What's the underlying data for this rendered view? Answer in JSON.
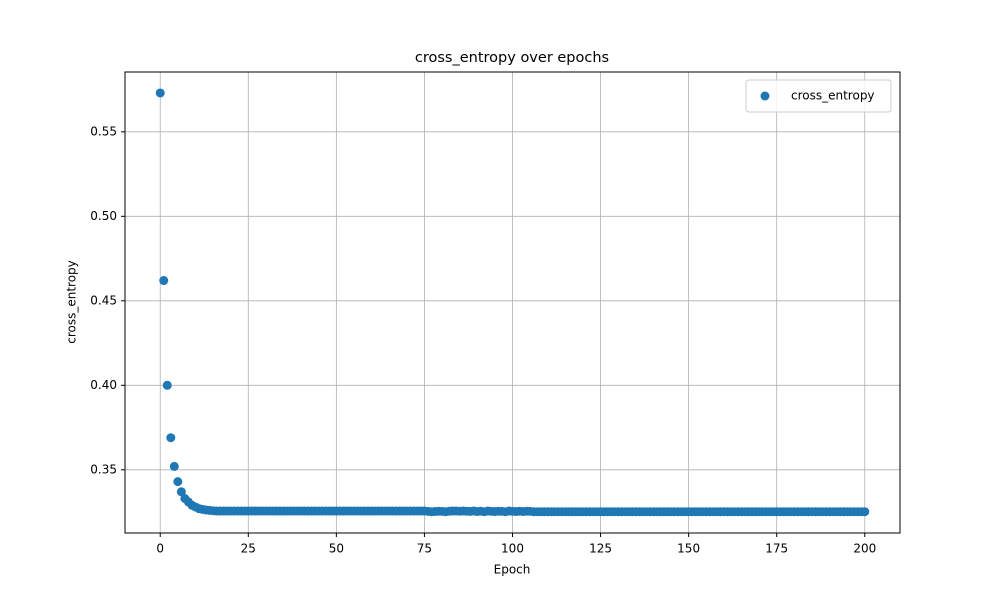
{
  "chart_data": {
    "type": "scatter",
    "title": "cross_entropy over epochs",
    "x_label": "Epoch",
    "y_label": "cross_entropy",
    "x": [
      0,
      1,
      2,
      3,
      4,
      5,
      6,
      7,
      8,
      9,
      10,
      11,
      12,
      13,
      14,
      15,
      16,
      17,
      18,
      19,
      20,
      21,
      22,
      23,
      24,
      25,
      26,
      27,
      28,
      29,
      30,
      31,
      32,
      33,
      34,
      35,
      36,
      37,
      38,
      39,
      40,
      41,
      42,
      43,
      44,
      45,
      46,
      47,
      48,
      49,
      50,
      51,
      52,
      53,
      54,
      55,
      56,
      57,
      58,
      59,
      60,
      61,
      62,
      63,
      64,
      65,
      66,
      67,
      68,
      69,
      70,
      71,
      72,
      73,
      74,
      75,
      76,
      77,
      78,
      79,
      80,
      81,
      82,
      83,
      84,
      85,
      86,
      87,
      88,
      89,
      90,
      91,
      92,
      93,
      94,
      95,
      96,
      97,
      98,
      99,
      100,
      101,
      102,
      103,
      104,
      105,
      106,
      107,
      108,
      109,
      110,
      111,
      112,
      113,
      114,
      115,
      116,
      117,
      118,
      119,
      120,
      121,
      122,
      123,
      124,
      125,
      126,
      127,
      128,
      129,
      130,
      131,
      132,
      133,
      134,
      135,
      136,
      137,
      138,
      139,
      140,
      141,
      142,
      143,
      144,
      145,
      146,
      147,
      148,
      149,
      150,
      151,
      152,
      153,
      154,
      155,
      156,
      157,
      158,
      159,
      160,
      161,
      162,
      163,
      164,
      165,
      166,
      167,
      168,
      169,
      170,
      171,
      172,
      173,
      174,
      175,
      176,
      177,
      178,
      179,
      180,
      181,
      182,
      183,
      184,
      185,
      186,
      187,
      188,
      189,
      190,
      191,
      192,
      193,
      194,
      195,
      196,
      197,
      198,
      199,
      200
    ],
    "series": [
      {
        "name": "cross_entropy",
        "color": "#1f77b4",
        "values": [
          0.573,
          0.462,
          0.4,
          0.369,
          0.352,
          0.343,
          0.337,
          0.333,
          0.331,
          0.329,
          0.328,
          0.327,
          0.3266,
          0.3262,
          0.326,
          0.3258,
          0.3256,
          0.3256,
          0.3256,
          0.3256,
          0.3256,
          0.3256,
          0.3256,
          0.3256,
          0.3256,
          0.3256,
          0.3256,
          0.3256,
          0.3256,
          0.3256,
          0.3256,
          0.3256,
          0.3256,
          0.3256,
          0.3256,
          0.3256,
          0.3256,
          0.3256,
          0.3256,
          0.3256,
          0.3256,
          0.3256,
          0.3256,
          0.3256,
          0.3256,
          0.3256,
          0.3256,
          0.3256,
          0.3256,
          0.3256,
          0.3256,
          0.3256,
          0.3256,
          0.3256,
          0.3256,
          0.3256,
          0.3256,
          0.3256,
          0.3256,
          0.3256,
          0.3256,
          0.3256,
          0.3256,
          0.3256,
          0.3256,
          0.3256,
          0.3256,
          0.3256,
          0.3256,
          0.3256,
          0.3256,
          0.3256,
          0.3256,
          0.3256,
          0.3256,
          0.3256,
          0.3254,
          0.3252,
          0.3253,
          0.3255,
          0.3254,
          0.3252,
          0.3255,
          0.3256,
          0.3256,
          0.3255,
          0.3256,
          0.3255,
          0.3254,
          0.3256,
          0.3253,
          0.3255,
          0.3252,
          0.3256,
          0.3254,
          0.3253,
          0.3255,
          0.3254,
          0.3252,
          0.3256,
          0.3254,
          0.3253,
          0.3255,
          0.3253,
          0.3255,
          0.3254,
          0.3252,
          0.3252,
          0.3252,
          0.3252,
          0.3252,
          0.3252,
          0.3252,
          0.3252,
          0.3252,
          0.3252,
          0.3252,
          0.3252,
          0.3252,
          0.3252,
          0.3252,
          0.3252,
          0.3252,
          0.3252,
          0.3252,
          0.3252,
          0.3252,
          0.3252,
          0.3252,
          0.3252,
          0.3252,
          0.3252,
          0.3252,
          0.3252,
          0.3252,
          0.3252,
          0.3252,
          0.3252,
          0.3252,
          0.3252,
          0.3252,
          0.3252,
          0.3252,
          0.3252,
          0.3252,
          0.3252,
          0.3252,
          0.3252,
          0.3252,
          0.3252,
          0.3252,
          0.3252,
          0.3252,
          0.3252,
          0.3252,
          0.3252,
          0.3252,
          0.3252,
          0.3252,
          0.3252,
          0.3252,
          0.3252,
          0.3252,
          0.3252,
          0.3252,
          0.3252,
          0.3252,
          0.3252,
          0.3252,
          0.3252,
          0.3252,
          0.3252,
          0.3252,
          0.3252,
          0.3252,
          0.3252,
          0.3252,
          0.3252,
          0.3252,
          0.3252,
          0.3252,
          0.3252,
          0.3252,
          0.3252,
          0.3252,
          0.3252,
          0.3252,
          0.3252,
          0.3252,
          0.3252,
          0.3252,
          0.3252,
          0.3252,
          0.3252,
          0.3252,
          0.3252,
          0.3252,
          0.3252,
          0.3252,
          0.3252,
          0.3252
        ]
      }
    ],
    "xlim": [
      -10,
      210
    ],
    "ylim": [
      0.3126,
      0.5854
    ],
    "xticks": [
      0,
      25,
      50,
      75,
      100,
      125,
      150,
      175,
      200
    ],
    "yticks": [
      0.35,
      {
        "value": 0.4,
        "label": "0.40"
      },
      0.45,
      {
        "value": 0.5,
        "label": "0.50"
      },
      0.55
    ],
    "grid": true,
    "legend": "upper right"
  }
}
